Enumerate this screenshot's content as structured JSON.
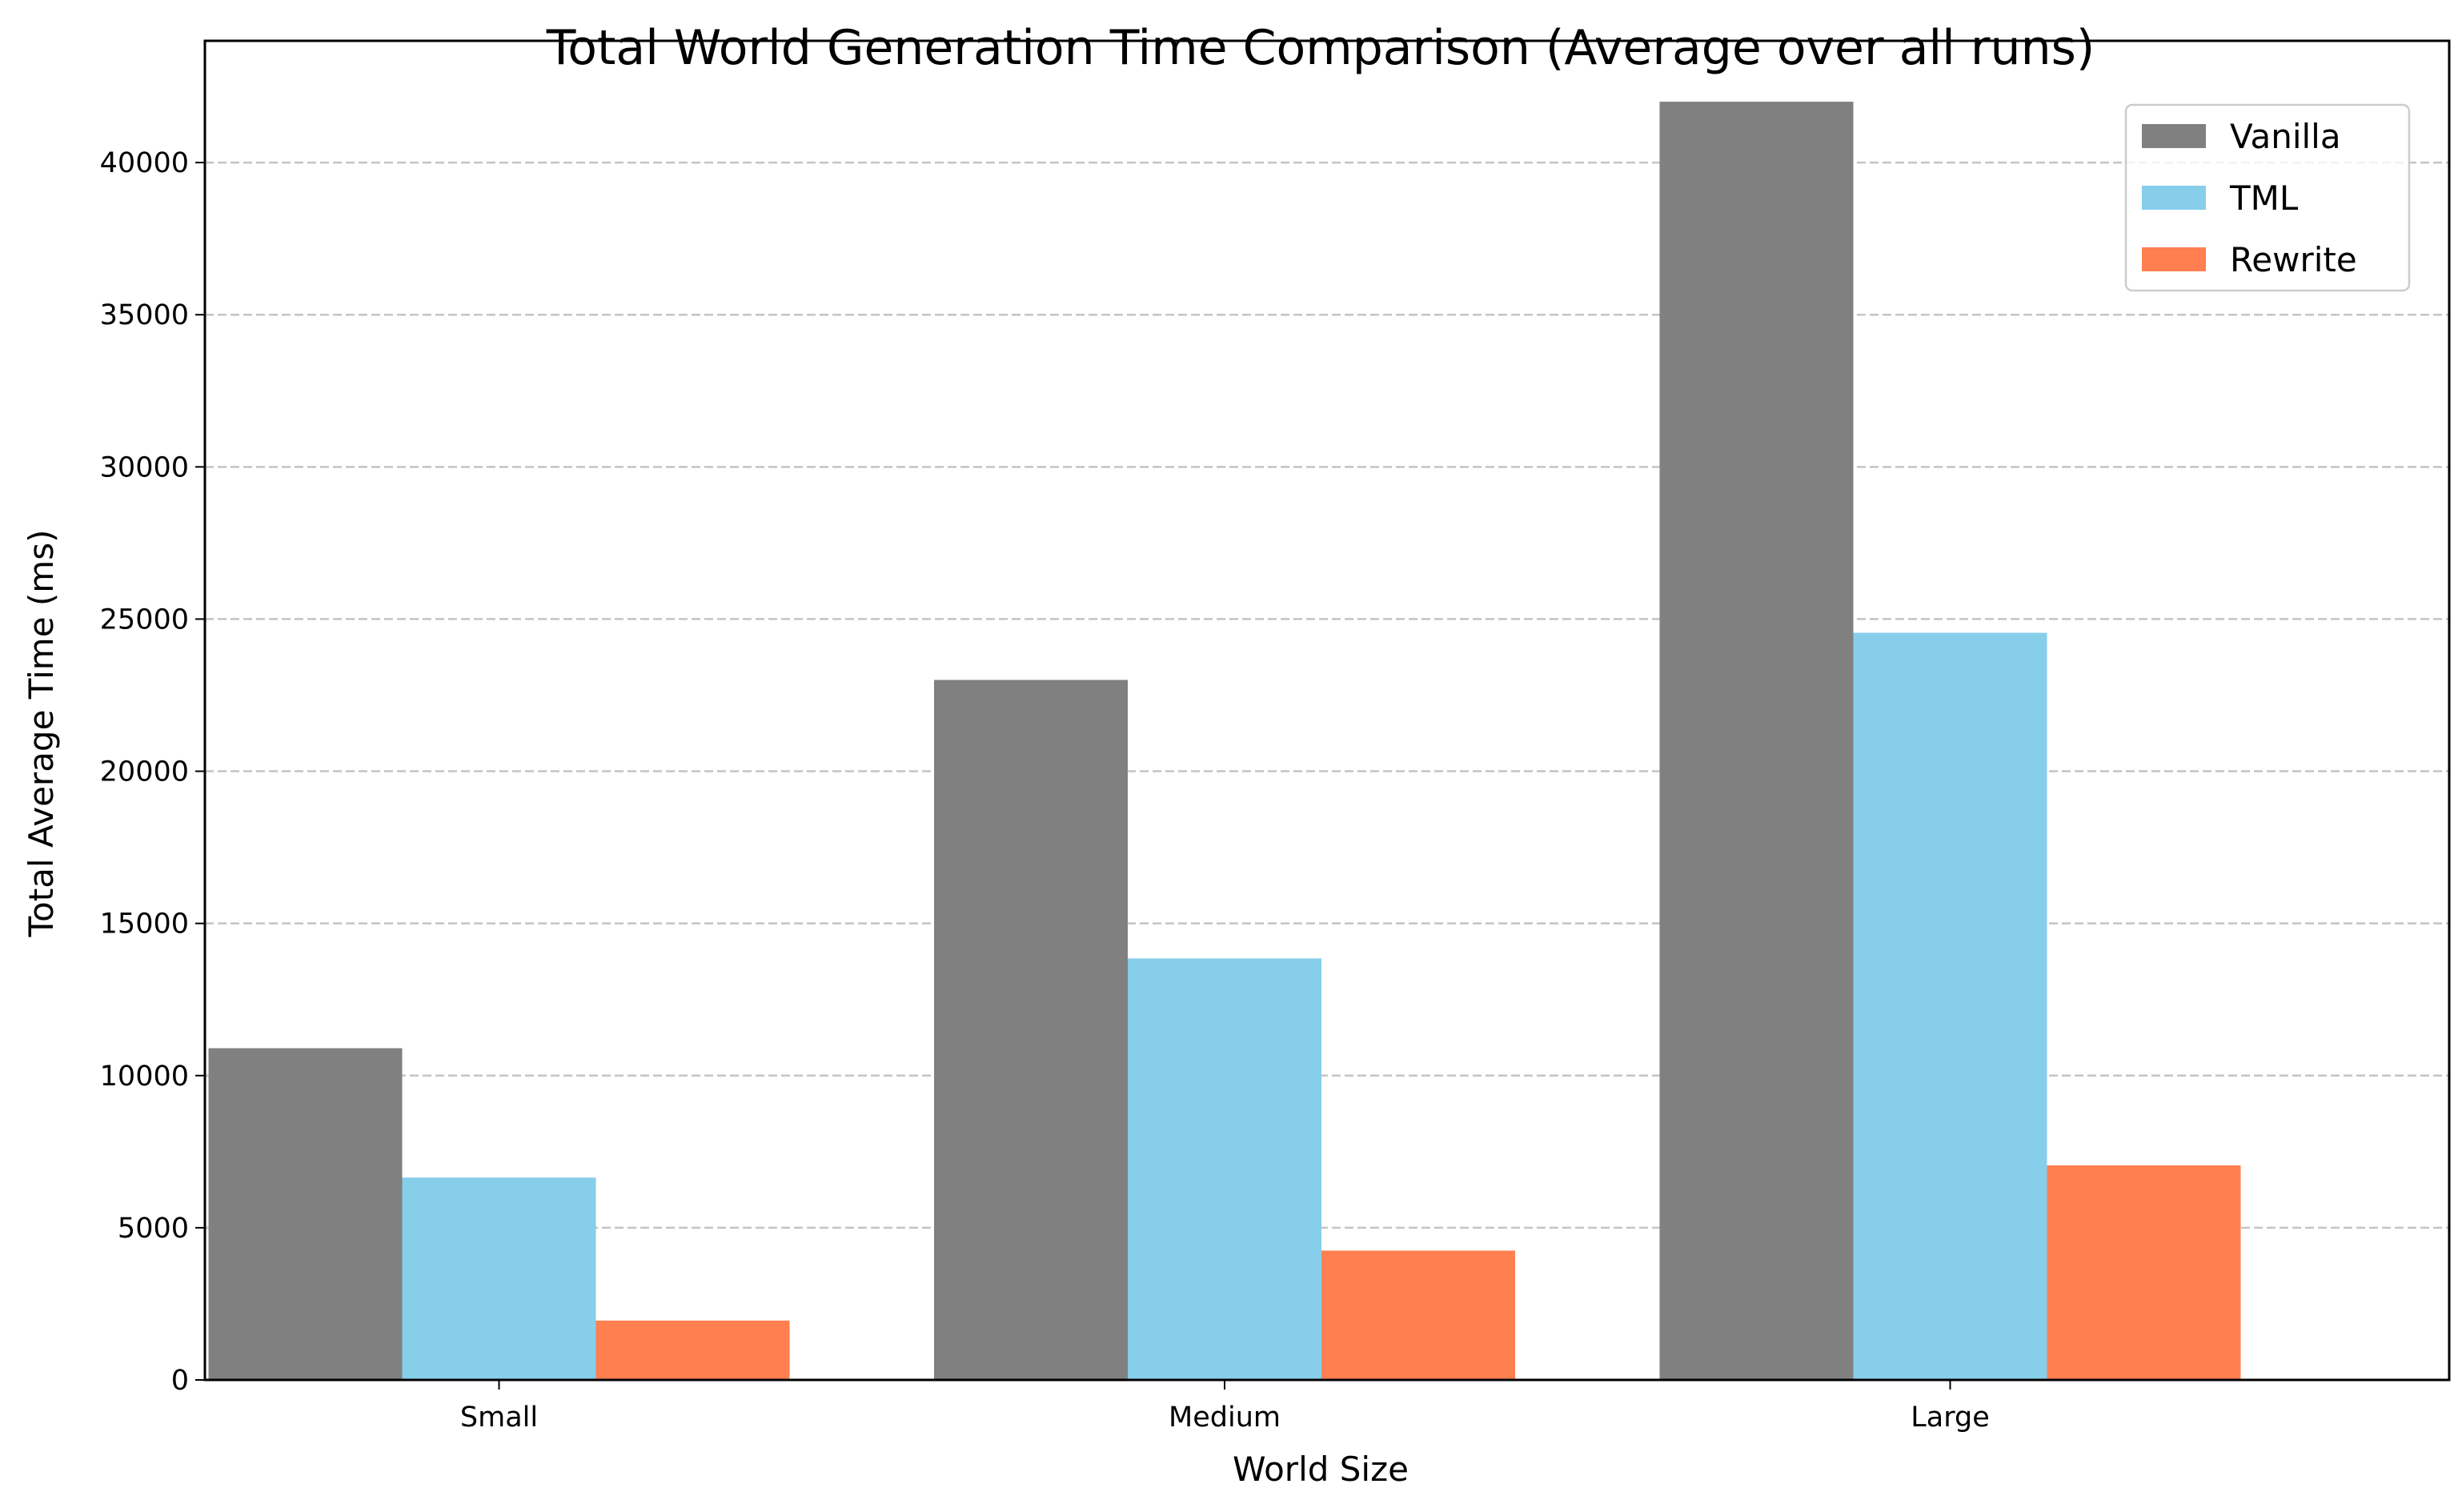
{
  "chart_data": {
    "type": "bar",
    "title": "Total World Generation Time Comparison (Average over all runs)",
    "xlabel": "World Size",
    "ylabel": "Total Average Time (ms)",
    "categories": [
      "Small",
      "Medium",
      "Large"
    ],
    "series": [
      {
        "name": "Vanilla",
        "color": "#808080",
        "values": [
          10900,
          23000,
          42000
        ]
      },
      {
        "name": "TML",
        "color": "#87CEEB",
        "values": [
          6650,
          13850,
          24550
        ]
      },
      {
        "name": "Rewrite",
        "color": "#FF7F50",
        "values": [
          1950,
          4250,
          7050
        ]
      }
    ],
    "ylim": [
      0,
      44000
    ],
    "yticks": [
      0,
      5000,
      10000,
      15000,
      20000,
      25000,
      30000,
      35000,
      40000
    ],
    "grid": "y-dashed",
    "legend": "top-right"
  }
}
